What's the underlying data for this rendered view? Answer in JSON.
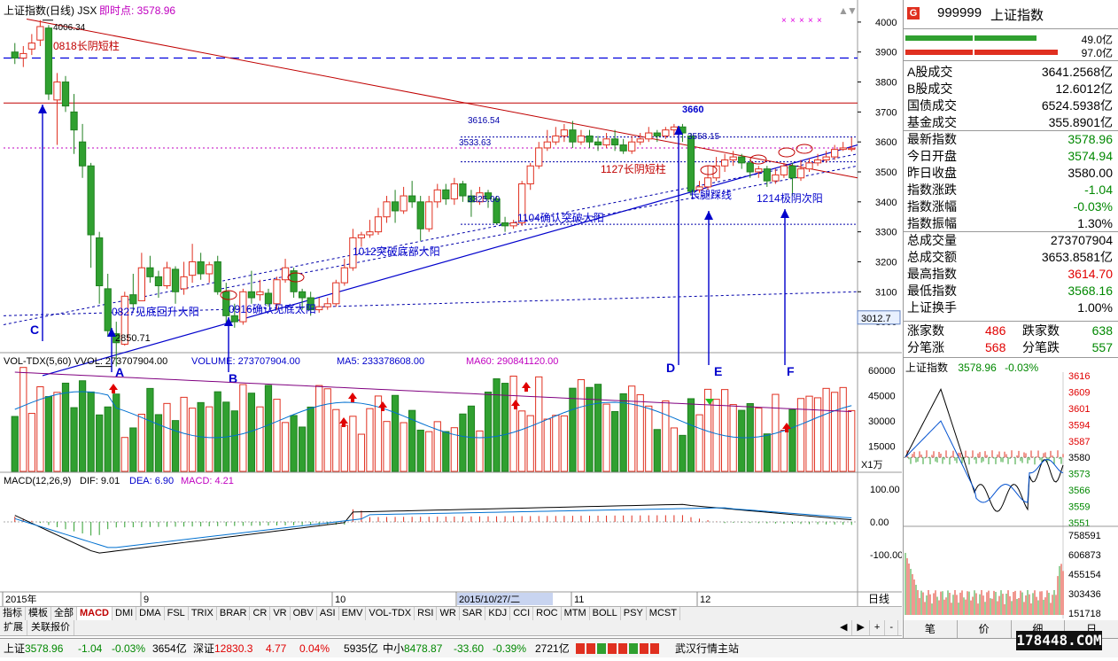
{
  "chart_title": "上证指数(日线)",
  "chart_code": "JSX",
  "instant_point_label": "即时点: 3578.96",
  "price_axis": [
    "4000",
    "3900",
    "3800",
    "3700",
    "3600",
    "3500",
    "3400",
    "3300",
    "3200",
    "3100",
    "3000"
  ],
  "current_price_box": "3012.7",
  "vol_axis": [
    "60000",
    "45000",
    "30000",
    "15000"
  ],
  "vol_unit": "X1万",
  "macd_axis": [
    "100.00",
    "0.00",
    "-100.00"
  ],
  "date_labels": [
    "2015年",
    "9",
    "10",
    "2015/10/27/二",
    "11",
    "12"
  ],
  "day_label": "日线",
  "vol_header": {
    "name": "VOL-TDX(5,60)",
    "vvol": "VVOL: 273707904.00",
    "volume": "VOLUME: 273707904.00",
    "ma5": "MA5: 233378608.00",
    "ma60": "MA60: 290841120.00"
  },
  "macd_header": {
    "name": "MACD(12,26,9)",
    "dif": "DIF: 9.01",
    "dea": "DEA: 6.90",
    "macd": "MACD: 4.21"
  },
  "annotations": [
    {
      "text": "4006.34"
    },
    {
      "text": "0818长阴短柱"
    },
    {
      "text": "3616.54"
    },
    {
      "text": "3533.63"
    },
    {
      "text": "3325.00"
    },
    {
      "text": "3660"
    },
    {
      "text": "3558.15"
    },
    {
      "text": "1127长阴短柱"
    },
    {
      "text": "长腿踩线"
    },
    {
      "text": "1104确认突破大阳"
    },
    {
      "text": "1214极阴次阳"
    },
    {
      "text": "1012突破底部大阳"
    },
    {
      "text": "0827见底回升大阳"
    },
    {
      "text": "0916确认见底太阳"
    },
    {
      "text": "2850.71"
    },
    {
      "text": "A"
    },
    {
      "text": "B"
    },
    {
      "text": "C"
    },
    {
      "text": "D"
    },
    {
      "text": "E"
    },
    {
      "text": "F"
    }
  ],
  "indicator_tabs": [
    "指标",
    "模板",
    "全部",
    "MACD",
    "DMI",
    "DMA",
    "FSL",
    "TRIX",
    "BRAR",
    "CR",
    "VR",
    "OBV",
    "ASI",
    "EMV",
    "VOL-TDX",
    "RSI",
    "WR",
    "SAR",
    "KDJ",
    "CCI",
    "ROC",
    "MTM",
    "BOLL",
    "PSY",
    "MCST"
  ],
  "indicator_tab_active": "MACD",
  "sub_tabs": [
    "扩展",
    "关联报价"
  ],
  "nav_symbols": [
    "◀",
    "▶",
    "+",
    "-"
  ],
  "quote_panel": {
    "code": "999999",
    "name": "上证指数",
    "badge": "G",
    "amount_top": "49.0亿",
    "amount_bottom": "97.0亿",
    "rows": [
      {
        "k": "A股成交",
        "v": "3641.2568亿",
        "c": "#000000"
      },
      {
        "k": "B股成交",
        "v": "12.6012亿",
        "c": "#000000"
      },
      {
        "k": "国债成交",
        "v": "6524.5938亿",
        "c": "#000000"
      },
      {
        "k": "基金成交",
        "v": "355.8901亿",
        "c": "#000000"
      },
      {
        "k": "最新指数",
        "v": "3578.96",
        "c": "#008800"
      },
      {
        "k": "今日开盘",
        "v": "3574.94",
        "c": "#008800"
      },
      {
        "k": "昨日收盘",
        "v": "3580.00",
        "c": "#000000"
      },
      {
        "k": "指数涨跌",
        "v": "-1.04",
        "c": "#008800"
      },
      {
        "k": "指数涨幅",
        "v": "-0.03%",
        "c": "#008800"
      },
      {
        "k": "指数振幅",
        "v": "1.30%",
        "c": "#000000"
      },
      {
        "k": "总成交量",
        "v": "273707904",
        "c": "#000000"
      },
      {
        "k": "总成交额",
        "v": "3653.8581亿",
        "c": "#000000"
      },
      {
        "k": "最高指数",
        "v": "3614.70",
        "c": "#e00000"
      },
      {
        "k": "最低指数",
        "v": "3568.16",
        "c": "#008800"
      },
      {
        "k": "上证换手",
        "v": "1.00%",
        "c": "#000000"
      }
    ],
    "up_label": "涨家数",
    "up_value": "486",
    "down_label": "跌家数",
    "down_value": "638",
    "tick_up_label": "分笔涨",
    "tick_up_value": "568",
    "tick_down_label": "分笔跌",
    "tick_down_value": "557",
    "mini_title": "上证指数",
    "mini_price": "3578.96",
    "mini_change": "-0.03%",
    "mini_axis": [
      "3616",
      "3609",
      "3601",
      "3594",
      "3587",
      "3580",
      "3573",
      "3566",
      "3559",
      "3551"
    ],
    "mini_vol_axis": [
      "758591",
      "606873",
      "455154",
      "303436",
      "151718"
    ],
    "tabs": [
      "笔",
      "价",
      "细",
      "日"
    ]
  },
  "status": {
    "sh_label": "上证",
    "sh_price": "3578.96",
    "sh_chg": "-1.04",
    "sh_pct": "-0.03%",
    "sh_amt": "3654亿",
    "sz_label": "深证",
    "sz_price": "12830.3",
    "sz_chg": "4.77",
    "sz_pct": "0.04%",
    "sz_amt": "5935亿",
    "zx_label": "中小",
    "zx_price": "8478.87",
    "zx_chg": "-33.60",
    "zx_pct": "-0.39%",
    "zx_amt": "2721亿",
    "station": "武汉行情主站"
  },
  "watermark": "178448.COM",
  "chart_data": {
    "type": "candlestick",
    "title": "上证指数(日线)",
    "ylim": [
      2950,
      4050
    ],
    "start_month": "2015-08",
    "candles": [
      [
        3900,
        3880,
        3930,
        3860
      ],
      [
        3880,
        3895,
        3920,
        3850
      ],
      [
        3910,
        3930,
        3960,
        3890
      ],
      [
        3940,
        3985,
        4006.34,
        3920
      ],
      [
        3980,
        3760,
        3990,
        3740
      ],
      [
        3740,
        3800,
        3830,
        3590
      ],
      [
        3800,
        3720,
        3820,
        3700
      ],
      [
        3700,
        3640,
        3760,
        3560
      ],
      [
        3600,
        3520,
        3660,
        3480
      ],
      [
        3520,
        3290,
        3530,
        3180
      ],
      [
        3280,
        3120,
        3300,
        3060
      ],
      [
        3110,
        2970,
        3160,
        2950
      ],
      [
        2960,
        2930,
        3000,
        2850.71
      ],
      [
        2925,
        3085,
        3100,
        2920
      ],
      [
        3090,
        3060,
        3160,
        3040
      ],
      [
        3070,
        3180,
        3230,
        3070
      ],
      [
        3180,
        3150,
        3220,
        3130
      ],
      [
        3150,
        3120,
        3170,
        3080
      ],
      [
        3120,
        3180,
        3200,
        3110
      ],
      [
        3175,
        3100,
        3185,
        3060
      ],
      [
        3110,
        3150,
        3200,
        3090
      ],
      [
        3155,
        3200,
        3260,
        3130
      ],
      [
        3200,
        3160,
        3230,
        3140
      ],
      [
        3160,
        3190,
        3200,
        3130
      ],
      [
        3200,
        3100,
        3220,
        3090
      ],
      [
        3100,
        3020,
        3130,
        2990
      ],
      [
        3020,
        3000,
        3060,
        2980
      ],
      [
        3000,
        3100,
        3110,
        2990
      ],
      [
        3100,
        3080,
        3170,
        3060
      ],
      [
        3090,
        3100,
        3140,
        3070
      ],
      [
        3095,
        3060,
        3110,
        3050
      ],
      [
        3060,
        3140,
        3150,
        3040
      ],
      [
        3140,
        3180,
        3210,
        3130
      ],
      [
        3170,
        3100,
        3180,
        3080
      ],
      [
        3100,
        3080,
        3110,
        3040
      ],
      [
        3080,
        3040,
        3100,
        3020
      ],
      [
        3040,
        3050,
        3080,
        3030
      ],
      [
        3050,
        3060,
        3080,
        3040
      ],
      [
        3060,
        3130,
        3140,
        3050
      ],
      [
        3130,
        3180,
        3210,
        3120
      ],
      [
        3180,
        3280,
        3310,
        3170
      ],
      [
        3280,
        3290,
        3300,
        3250
      ],
      [
        3290,
        3300,
        3340,
        3280
      ],
      [
        3300,
        3350,
        3380,
        3290
      ],
      [
        3350,
        3400,
        3420,
        3330
      ],
      [
        3400,
        3370,
        3440,
        3330
      ],
      [
        3370,
        3420,
        3450,
        3360
      ],
      [
        3420,
        3400,
        3470,
        3380
      ],
      [
        3400,
        3310,
        3420,
        3270
      ],
      [
        3310,
        3400,
        3420,
        3300
      ],
      [
        3400,
        3440,
        3460,
        3380
      ],
      [
        3440,
        3410,
        3460,
        3390
      ],
      [
        3410,
        3460,
        3480,
        3390
      ],
      [
        3460,
        3420,
        3470,
        3400
      ],
      [
        3420,
        3400,
        3440,
        3350
      ],
      [
        3400,
        3430,
        3450,
        3390
      ],
      [
        3430,
        3410,
        3440,
        3380
      ],
      [
        3410,
        3330,
        3420,
        3325
      ],
      [
        3330,
        3320,
        3350,
        3300
      ],
      [
        3320,
        3330,
        3340,
        3310
      ],
      [
        3330,
        3460,
        3470,
        3320
      ],
      [
        3460,
        3520,
        3530,
        3440
      ],
      [
        3520,
        3580,
        3600,
        3510
      ],
      [
        3580,
        3600,
        3640,
        3570
      ],
      [
        3600,
        3620,
        3650,
        3590
      ],
      [
        3620,
        3640,
        3660,
        3600
      ],
      [
        3640,
        3600,
        3670,
        3580
      ],
      [
        3600,
        3620,
        3640,
        3590
      ],
      [
        3620,
        3600,
        3640,
        3580
      ],
      [
        3600,
        3590,
        3620,
        3570
      ],
      [
        3590,
        3610,
        3630,
        3580
      ],
      [
        3610,
        3590,
        3640,
        3570
      ],
      [
        3590,
        3570,
        3610,
        3560
      ],
      [
        3570,
        3600,
        3620,
        3560
      ],
      [
        3600,
        3610,
        3630,
        3590
      ],
      [
        3610,
        3630,
        3650,
        3600
      ],
      [
        3630,
        3620,
        3640,
        3600
      ],
      [
        3620,
        3640,
        3650,
        3610
      ],
      [
        3640,
        3650,
        3660,
        3620
      ],
      [
        3650,
        3630,
        3660,
        3600
      ],
      [
        3620,
        3435,
        3630,
        3420
      ],
      [
        3440,
        3450,
        3470,
        3430
      ],
      [
        3450,
        3480,
        3520,
        3440
      ],
      [
        3480,
        3520,
        3550,
        3470
      ],
      [
        3520,
        3540,
        3560,
        3500
      ],
      [
        3540,
        3550,
        3570,
        3520
      ],
      [
        3550,
        3530,
        3560,
        3510
      ],
      [
        3530,
        3500,
        3540,
        3480
      ],
      [
        3500,
        3510,
        3520,
        3480
      ],
      [
        3510,
        3470,
        3520,
        3450
      ],
      [
        3470,
        3490,
        3510,
        3460
      ],
      [
        3490,
        3520,
        3530,
        3480
      ],
      [
        3520,
        3480,
        3530,
        3420
      ],
      [
        3480,
        3510,
        3540,
        3470
      ],
      [
        3510,
        3530,
        3545,
        3500
      ],
      [
        3530,
        3540,
        3560,
        3520
      ],
      [
        3540,
        3550,
        3570,
        3530
      ],
      [
        3550,
        3575,
        3590,
        3540
      ],
      [
        3575,
        3580,
        3600,
        3570
      ],
      [
        3574.94,
        3578.96,
        3614.7,
        3568.16
      ]
    ]
  }
}
